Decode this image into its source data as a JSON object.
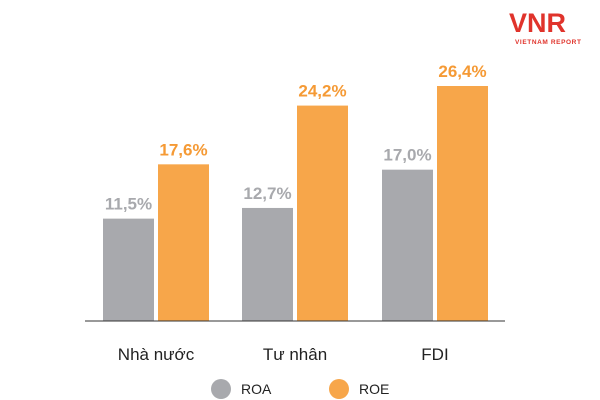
{
  "logo": {
    "mark": "VNR",
    "subtitle": "VIETNAM REPORT"
  },
  "colors": {
    "roa": "#a8a9ad",
    "roe": "#f7a64a",
    "roa_label": "#a8a9ad",
    "roe_label": "#f59a35",
    "logo": "#e0332b",
    "axis": "#333333"
  },
  "chart_data": {
    "type": "bar",
    "categories": [
      "Nhà nước",
      "Tư nhân",
      "FDI"
    ],
    "series": [
      {
        "name": "ROA",
        "values": [
          11.5,
          12.7,
          17.0
        ],
        "labels": [
          "11,5%",
          "12,7%",
          "17,0%"
        ]
      },
      {
        "name": "ROE",
        "values": [
          17.6,
          24.2,
          26.4
        ],
        "labels": [
          "17,6%",
          "24,2%",
          "26,4%"
        ]
      }
    ],
    "ylim": [
      0,
      30
    ],
    "grid": false,
    "legend": "bottom"
  }
}
